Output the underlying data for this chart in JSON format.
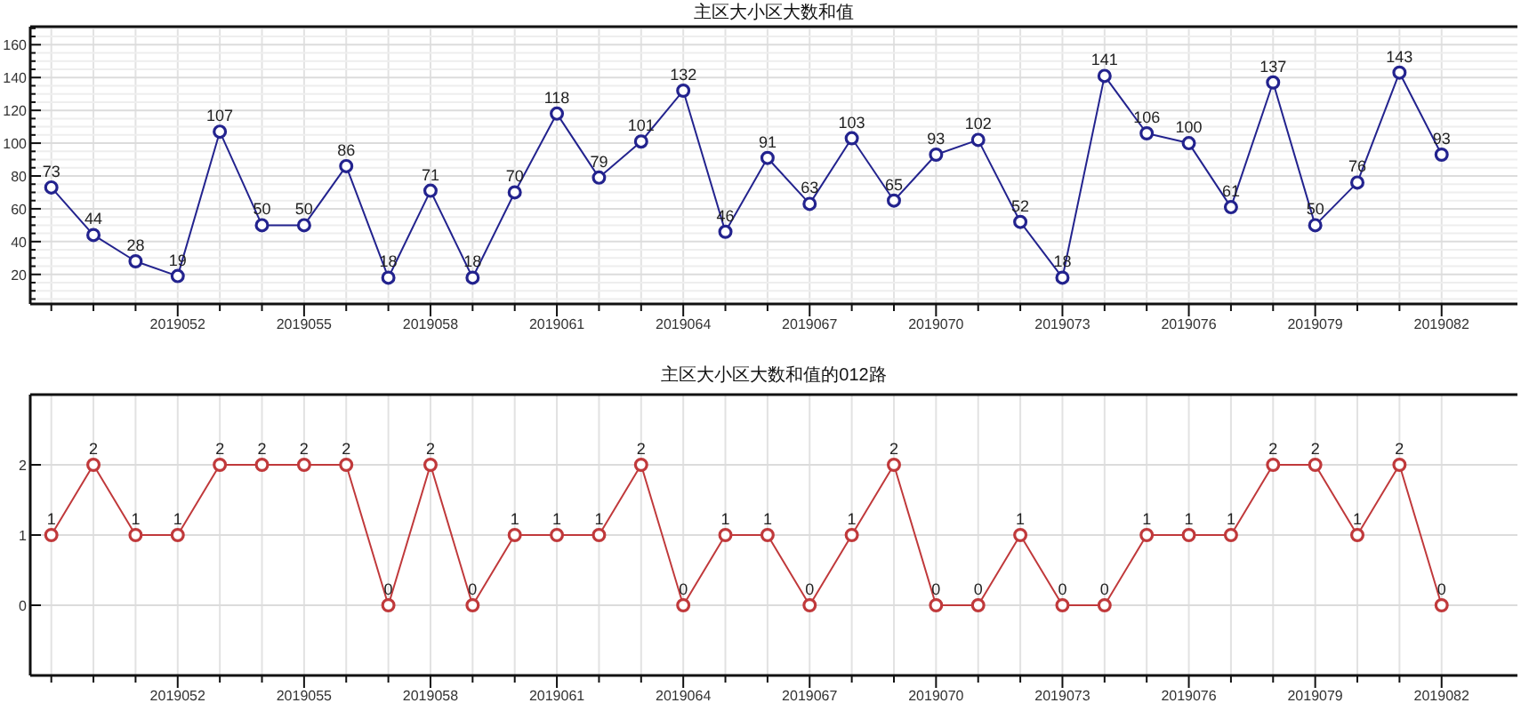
{
  "chart_data": [
    {
      "type": "line",
      "title": "主区大小区大数和值",
      "categories": [
        null,
        null,
        null,
        "2019052",
        null,
        null,
        "2019055",
        null,
        null,
        "2019058",
        null,
        null,
        "2019061",
        null,
        null,
        "2019064",
        null,
        null,
        "2019067",
        null,
        null,
        "2019070",
        null,
        null,
        "2019073",
        null,
        null,
        "2019076",
        null,
        null,
        "2019079",
        null,
        null,
        "2019082"
      ],
      "values": [
        73,
        44,
        28,
        19,
        107,
        50,
        50,
        86,
        18,
        71,
        18,
        70,
        118,
        79,
        101,
        132,
        46,
        91,
        63,
        103,
        65,
        93,
        102,
        52,
        18,
        141,
        106,
        100,
        61,
        137,
        50,
        76,
        143,
        93
      ],
      "color": "#23238e",
      "marker": "circle",
      "data_labels": true,
      "grid": true,
      "ylim": [
        2,
        171
      ],
      "yticks": [
        {
          "value": 5,
          "label": null
        },
        {
          "value": 10,
          "label": null
        },
        {
          "value": 15,
          "label": null
        },
        20,
        {
          "value": 25,
          "label": null
        },
        {
          "value": 30,
          "label": null
        },
        {
          "value": 35,
          "label": null
        },
        40,
        {
          "value": 45,
          "label": null
        },
        {
          "value": 50,
          "label": null
        },
        {
          "value": 55,
          "label": null
        },
        60,
        {
          "value": 65,
          "label": null
        },
        {
          "value": 70,
          "label": null
        },
        {
          "value": 75,
          "label": null
        },
        80,
        {
          "value": 85,
          "label": null
        },
        {
          "value": 90,
          "label": null
        },
        {
          "value": 95,
          "label": null
        },
        100,
        {
          "value": 105,
          "label": null
        },
        {
          "value": 110,
          "label": null
        },
        {
          "value": 115,
          "label": null
        },
        120,
        {
          "value": 125,
          "label": null
        },
        {
          "value": 130,
          "label": null
        },
        {
          "value": 135,
          "label": null
        },
        140,
        {
          "value": 145,
          "label": null
        },
        {
          "value": 150,
          "label": null
        },
        {
          "value": 155,
          "label": null
        },
        160,
        {
          "value": 165,
          "label": null
        },
        {
          "value": 170,
          "label": null
        }
      ]
    },
    {
      "type": "line",
      "title": "主区大小区大数和值的012路",
      "categories": [
        null,
        null,
        null,
        "2019052",
        null,
        null,
        "2019055",
        null,
        null,
        "2019058",
        null,
        null,
        "2019061",
        null,
        null,
        "2019064",
        null,
        null,
        "2019067",
        null,
        null,
        "2019070",
        null,
        null,
        "2019073",
        null,
        null,
        "2019076",
        null,
        null,
        "2019079",
        null,
        null,
        "2019082"
      ],
      "values": [
        1,
        2,
        1,
        1,
        2,
        2,
        2,
        2,
        0,
        2,
        0,
        1,
        1,
        1,
        2,
        0,
        1,
        1,
        0,
        1,
        2,
        0,
        0,
        1,
        0,
        0,
        1,
        1,
        1,
        2,
        2,
        1,
        2,
        0
      ],
      "color": "#c0393b",
      "marker": "circle",
      "data_labels": true,
      "grid": true,
      "ylim": [
        -1,
        3
      ],
      "yticks": [
        0,
        1,
        2
      ]
    }
  ]
}
